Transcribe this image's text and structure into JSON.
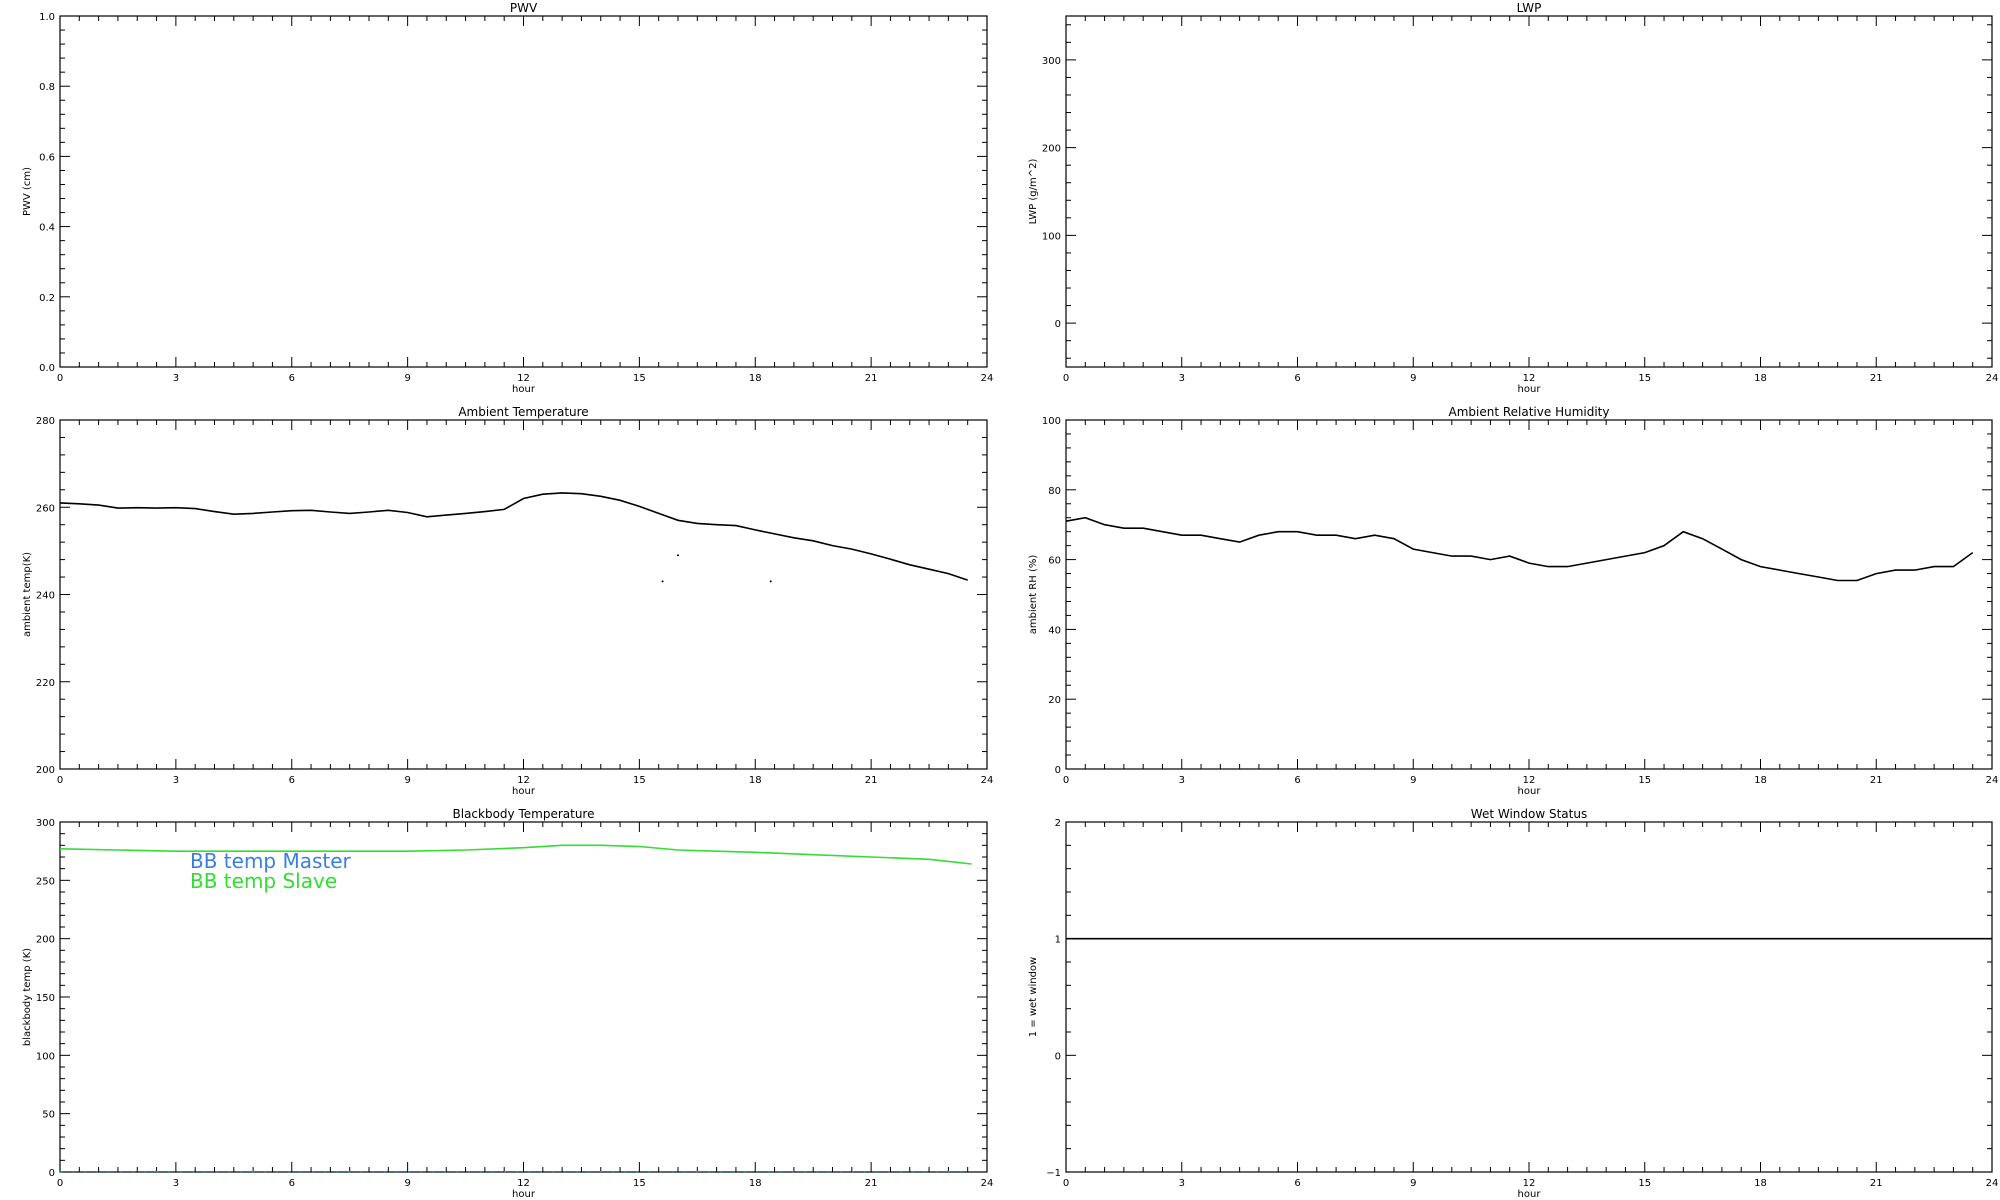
{
  "chart_data": [
    {
      "id": "pwv",
      "type": "line",
      "title": "PWV",
      "xlabel": "hour",
      "ylabel": "PWV (cm)",
      "xlim": [
        0,
        24
      ],
      "ylim": [
        0,
        1
      ],
      "xticks": [
        0,
        3,
        6,
        9,
        12,
        15,
        18,
        21,
        24
      ],
      "yticks": [
        0.0,
        0.2,
        0.4,
        0.6,
        0.8,
        1.0
      ],
      "ytick_labels": [
        "0.0",
        "0.2",
        "0.4",
        "0.6",
        "0.8",
        "1.0"
      ],
      "series": []
    },
    {
      "id": "lwp",
      "type": "line",
      "title": "LWP",
      "xlabel": "hour",
      "ylabel": "LWP (g/m^2)",
      "xlim": [
        0,
        24
      ],
      "ylim": [
        -50,
        350
      ],
      "xticks": [
        0,
        3,
        6,
        9,
        12,
        15,
        18,
        21,
        24
      ],
      "yticks": [
        0,
        100,
        200,
        300
      ],
      "ytick_labels": [
        "0",
        "100",
        "200",
        "300"
      ],
      "series": []
    },
    {
      "id": "ambient-temp",
      "type": "line",
      "title": "Ambient Temperature",
      "xlabel": "hour",
      "ylabel": "ambient temp(K)",
      "xlim": [
        0,
        24
      ],
      "ylim": [
        200,
        280
      ],
      "xticks": [
        0,
        3,
        6,
        9,
        12,
        15,
        18,
        21,
        24
      ],
      "yticks": [
        200,
        220,
        240,
        260,
        280
      ],
      "ytick_labels": [
        "200",
        "220",
        "240",
        "260",
        "280"
      ],
      "series": [
        {
          "color": "#000000",
          "x": [
            0,
            0.5,
            1.0,
            1.5,
            2.0,
            2.5,
            3.0,
            3.5,
            4.0,
            4.5,
            5.0,
            5.5,
            6.0,
            6.5,
            7.0,
            7.5,
            8.0,
            8.5,
            9.0,
            9.5,
            10.0,
            10.5,
            11.0,
            11.5,
            12.0,
            12.5,
            13.0,
            13.5,
            14.0,
            14.5,
            15.0,
            15.5,
            16.0,
            16.5,
            17.0,
            17.5,
            18.0,
            18.5,
            19.0,
            19.5,
            20.0,
            20.5,
            21.0,
            21.5,
            22.0,
            22.5,
            23.0,
            23.5
          ],
          "values": [
            261,
            260.8,
            260.5,
            259.8,
            259.9,
            259.8,
            259.9,
            259.7,
            259.0,
            258.4,
            258.6,
            258.9,
            259.2,
            259.3,
            258.9,
            258.6,
            258.9,
            259.3,
            258.8,
            257.8,
            258.2,
            258.6,
            259.0,
            259.5,
            262.0,
            263.0,
            263.3,
            263.1,
            262.5,
            261.6,
            260.2,
            258.6,
            257.0,
            256.3,
            256.0,
            255.8,
            254.8,
            253.9,
            253.0,
            252.3,
            251.2,
            250.4,
            249.3,
            248.1,
            246.8,
            245.8,
            244.8,
            243.3
          ]
        }
      ],
      "outliers": [
        {
          "x": 15.6,
          "y": 243
        },
        {
          "x": 16.0,
          "y": 249
        },
        {
          "x": 18.4,
          "y": 243
        }
      ]
    },
    {
      "id": "ambient-rh",
      "type": "line",
      "title": "Ambient Relative Humidity",
      "xlabel": "hour",
      "ylabel": "ambient RH (%)",
      "xlim": [
        0,
        24
      ],
      "ylim": [
        0,
        100
      ],
      "xticks": [
        0,
        3,
        6,
        9,
        12,
        15,
        18,
        21,
        24
      ],
      "yticks": [
        0,
        20,
        40,
        60,
        80,
        100
      ],
      "ytick_labels": [
        "0",
        "20",
        "40",
        "60",
        "80",
        "100"
      ],
      "series": [
        {
          "color": "#000000",
          "x": [
            0,
            0.5,
            1.0,
            1.5,
            2.0,
            2.5,
            3.0,
            3.5,
            4.0,
            4.5,
            5.0,
            5.5,
            6.0,
            6.5,
            7.0,
            7.5,
            8.0,
            8.5,
            9.0,
            9.5,
            10.0,
            10.5,
            11.0,
            11.5,
            12.0,
            12.5,
            13.0,
            13.5,
            14.0,
            14.5,
            15.0,
            15.5,
            16.0,
            16.5,
            17.0,
            17.5,
            18.0,
            18.5,
            19.0,
            19.5,
            20.0,
            20.5,
            21.0,
            21.5,
            22.0,
            22.5,
            23.0,
            23.5
          ],
          "values": [
            71,
            72,
            70,
            69,
            69,
            68,
            67,
            67,
            66,
            65,
            67,
            68,
            68,
            67,
            67,
            66,
            67,
            66,
            63,
            62,
            61,
            61,
            60,
            61,
            59,
            58,
            58,
            59,
            60,
            61,
            62,
            64,
            68,
            66,
            63,
            60,
            58,
            57,
            56,
            55,
            54,
            54,
            56,
            57,
            57,
            58,
            58,
            62
          ]
        }
      ]
    },
    {
      "id": "blackbody-temp",
      "type": "line",
      "title": "Blackbody Temperature",
      "xlabel": "hour",
      "ylabel": "blackbody temp (K)",
      "xlim": [
        0,
        24
      ],
      "ylim": [
        0,
        300
      ],
      "xticks": [
        0,
        3,
        6,
        9,
        12,
        15,
        18,
        21,
        24
      ],
      "yticks": [
        0,
        50,
        100,
        150,
        200,
        250,
        300
      ],
      "ytick_labels": [
        "0",
        "50",
        "100",
        "150",
        "200",
        "250",
        "300"
      ],
      "legend": [
        "BB temp Master",
        "BB temp Slave"
      ],
      "series": [
        {
          "name": "BB temp Master",
          "color": "#3a7fe0",
          "style": "dotted",
          "x": [
            0,
            3,
            6,
            9,
            12,
            15,
            18,
            21,
            23.6
          ],
          "values": [
            0,
            0,
            0,
            0,
            0,
            0,
            0,
            0,
            0
          ]
        },
        {
          "name": "BB temp Slave",
          "color": "#33dd33",
          "x": [
            0,
            1.5,
            3.0,
            4.5,
            6.0,
            7.5,
            9.0,
            10.5,
            12.0,
            13.0,
            14.0,
            15.0,
            16.0,
            17.0,
            18.0,
            19.5,
            21.0,
            22.5,
            23.6
          ],
          "values": [
            277,
            276,
            275,
            275,
            275,
            275,
            275,
            276,
            278,
            280,
            280,
            279,
            276,
            275,
            274,
            272,
            270,
            268,
            264
          ]
        }
      ]
    },
    {
      "id": "wet-window",
      "type": "line",
      "title": "Wet Window Status",
      "xlabel": "hour",
      "ylabel": "1 = wet window",
      "xlim": [
        0,
        24
      ],
      "ylim": [
        -1,
        2
      ],
      "xticks": [
        0,
        3,
        6,
        9,
        12,
        15,
        18,
        21,
        24
      ],
      "yticks": [
        -1,
        0,
        1,
        2
      ],
      "ytick_labels": [
        "−1",
        "0",
        "1",
        "2"
      ],
      "series": [
        {
          "color": "#000000",
          "x": [
            0,
            24
          ],
          "values": [
            1,
            1
          ]
        }
      ]
    }
  ]
}
